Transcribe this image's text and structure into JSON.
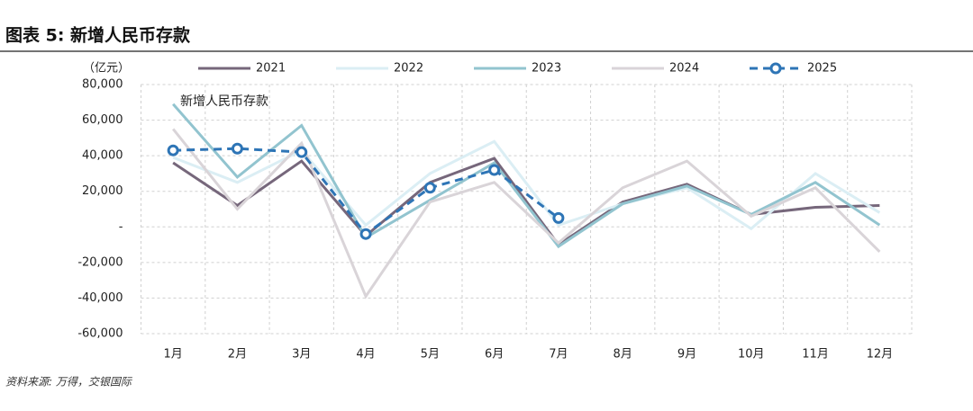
{
  "chart_data": {
    "type": "line",
    "title": "图表 5: 新增人民币存款",
    "y_unit": "（亿元）",
    "annotation": "新增人民币存款",
    "source": "资料来源: 万得，交银国际",
    "categories": [
      "1月",
      "2月",
      "3月",
      "4月",
      "5月",
      "6月",
      "7月",
      "8月",
      "9月",
      "10月",
      "11月",
      "12月"
    ],
    "ylim": [
      -60000,
      80000
    ],
    "yticks": [
      {
        "value": -60000,
        "label": "-60,000"
      },
      {
        "value": -40000,
        "label": "-40,000"
      },
      {
        "value": -20000,
        "label": "-20,000"
      },
      {
        "value": 0,
        "label": "-"
      },
      {
        "value": 20000,
        "label": "20,000"
      },
      {
        "value": 40000,
        "label": "40,000"
      },
      {
        "value": 60000,
        "label": "60,000"
      },
      {
        "value": 80000,
        "label": "80,000"
      }
    ],
    "grid": true,
    "series": [
      {
        "name": "2021",
        "color": "#76677b",
        "dashed": false,
        "values": [
          36000,
          12000,
          37000,
          -5000,
          25000,
          38500,
          -10000,
          14000,
          24000,
          7000,
          11000,
          12000
        ]
      },
      {
        "name": "2022",
        "color": "#dbeef4",
        "dashed": false,
        "values": [
          39000,
          25000,
          43000,
          1000,
          30000,
          48000,
          1000,
          13000,
          22000,
          -1000,
          30000,
          8000
        ]
      },
      {
        "name": "2023",
        "color": "#92c4cf",
        "dashed": false,
        "values": [
          69000,
          28000,
          57000,
          -6000,
          15000,
          36000,
          -11000,
          13000,
          23000,
          7000,
          25000,
          1000
        ]
      },
      {
        "name": "2024",
        "color": "#d9d4d8",
        "dashed": false,
        "values": [
          55000,
          10000,
          47000,
          -39000,
          14000,
          25000,
          -9000,
          22000,
          37000,
          6000,
          22000,
          -14000
        ]
      },
      {
        "name": "2025",
        "color": "#2e75b6",
        "dashed": true,
        "values": [
          43000,
          44000,
          42000,
          -4000,
          22000,
          32000,
          5000,
          null,
          null,
          null,
          null,
          null
        ]
      }
    ]
  }
}
